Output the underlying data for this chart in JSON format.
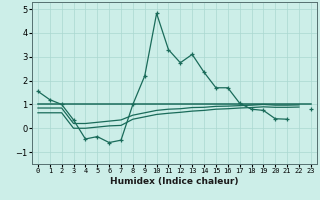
{
  "xlabel": "Humidex (Indice chaleur)",
  "x_values": [
    0,
    1,
    2,
    3,
    4,
    5,
    6,
    7,
    8,
    9,
    10,
    11,
    12,
    13,
    14,
    15,
    16,
    17,
    18,
    19,
    20,
    21,
    22,
    23
  ],
  "line1_y": [
    1.55,
    1.2,
    1.0,
    0.35,
    -0.45,
    -0.35,
    -0.6,
    -0.5,
    1.0,
    2.2,
    4.82,
    3.3,
    2.75,
    3.1,
    2.35,
    1.7,
    1.7,
    1.05,
    0.8,
    0.75,
    0.4,
    0.38,
    null,
    0.8
  ],
  "line2_y": [
    1.0,
    1.0,
    1.0,
    1.0,
    1.0,
    1.0,
    1.0,
    1.0,
    1.0,
    1.0,
    1.0,
    1.0,
    1.0,
    1.0,
    1.0,
    1.0,
    1.0,
    1.0,
    1.0,
    1.0,
    1.0,
    1.0,
    1.0,
    1.0
  ],
  "line3_y": [
    0.85,
    0.85,
    0.85,
    0.2,
    0.2,
    0.25,
    0.3,
    0.35,
    0.55,
    0.65,
    0.75,
    0.8,
    0.82,
    0.87,
    0.88,
    0.92,
    0.93,
    0.95,
    0.97,
    1.0,
    0.97,
    0.97,
    0.98,
    null
  ],
  "line4_y": [
    0.65,
    0.65,
    0.65,
    0.0,
    0.0,
    0.05,
    0.1,
    0.12,
    0.38,
    0.48,
    0.58,
    0.63,
    0.67,
    0.72,
    0.75,
    0.8,
    0.82,
    0.85,
    0.87,
    0.9,
    0.88,
    0.88,
    0.89,
    null
  ],
  "line_color": "#1a6b5a",
  "bg_color": "#cceee8",
  "grid_color": "#aad8d0",
  "ylim": [
    -1.5,
    5.3
  ],
  "xlim": [
    -0.5,
    23.5
  ],
  "yticks": [
    -1,
    0,
    1,
    2,
    3,
    4,
    5
  ],
  "xtick_labels": [
    "0",
    "1",
    "2",
    "3",
    "4",
    "5",
    "6",
    "7",
    "8",
    "9",
    "10",
    "11",
    "12",
    "13",
    "14",
    "15",
    "16",
    "17",
    "18",
    "19",
    "20",
    "21",
    "22",
    "23"
  ]
}
